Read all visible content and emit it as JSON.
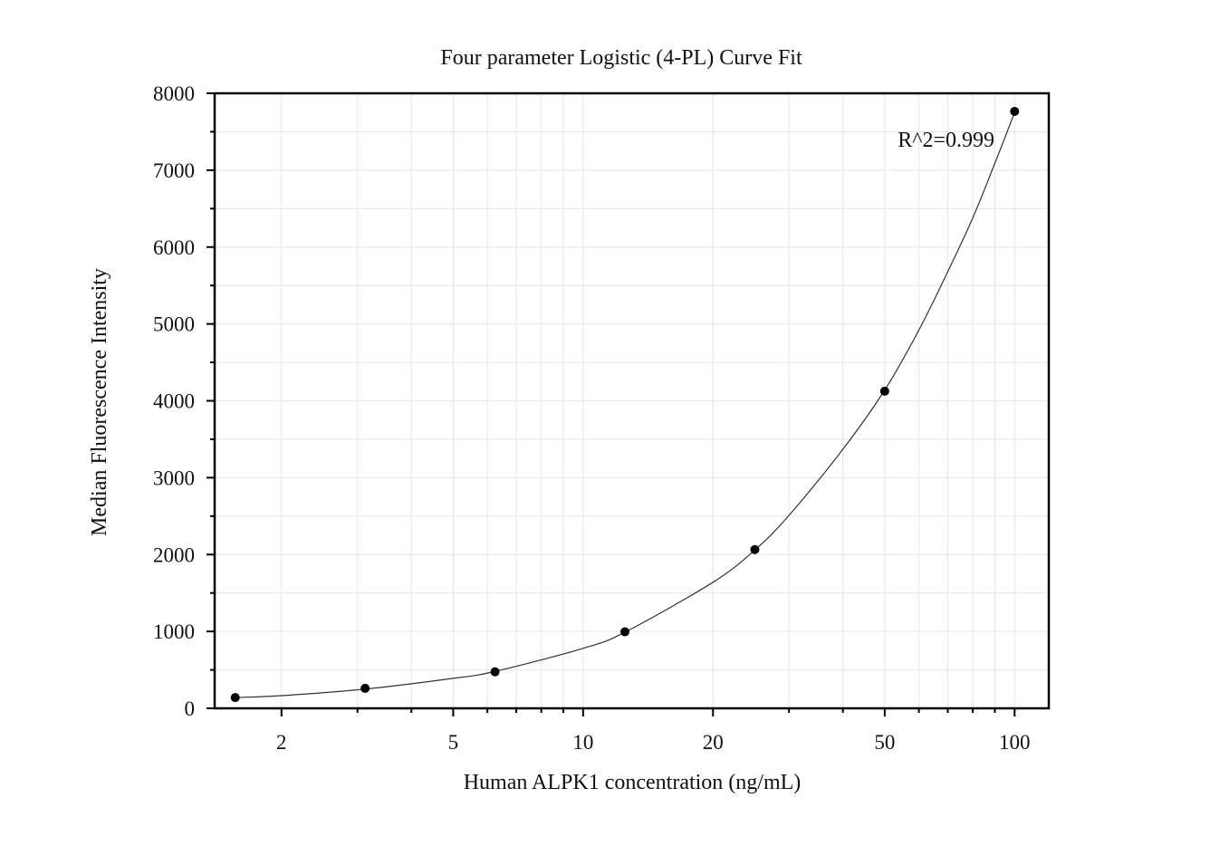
{
  "chart_data": {
    "type": "scatter",
    "title": "Four parameter Logistic (4-PL) Curve Fit",
    "xlabel": "Human ALPK1 concentration (ng/mL)",
    "ylabel": "Median Fluorescence Intensity",
    "x_scale": "log",
    "xlim": [
      1.4,
      120
    ],
    "ylim": [
      0,
      8000
    ],
    "x_ticks": [
      2,
      5,
      10,
      20,
      50,
      100
    ],
    "x_tick_labels": [
      "2",
      "5",
      "10",
      "20",
      "50",
      "100"
    ],
    "y_ticks": [
      0,
      1000,
      2000,
      3000,
      4000,
      5000,
      6000,
      7000,
      8000
    ],
    "y_tick_labels": [
      "0",
      "1000",
      "2000",
      "3000",
      "4000",
      "5000",
      "6000",
      "7000",
      "8000"
    ],
    "grid": true,
    "legend": "none",
    "series": [
      {
        "x": [
          1.5625,
          3.125,
          6.25,
          12.5,
          25,
          50,
          100
        ],
        "y": [
          140,
          260,
          475,
          995,
          2065,
          4125,
          7765
        ],
        "marker": "circle",
        "color": "#000000"
      }
    ],
    "fit": {
      "type": "4PL",
      "color": "#333333",
      "x": [
        1.5625,
        2,
        3.125,
        5,
        6.25,
        10,
        12.5,
        20,
        25,
        30,
        40,
        50,
        60,
        70,
        80,
        90,
        100
      ],
      "y": [
        140,
        165,
        250,
        390,
        480,
        780,
        990,
        1640,
        2060,
        2510,
        3370,
        4140,
        4920,
        5680,
        6380,
        7090,
        7750
      ]
    },
    "annotations": [
      {
        "text": "R^2=0.999"
      }
    ]
  }
}
